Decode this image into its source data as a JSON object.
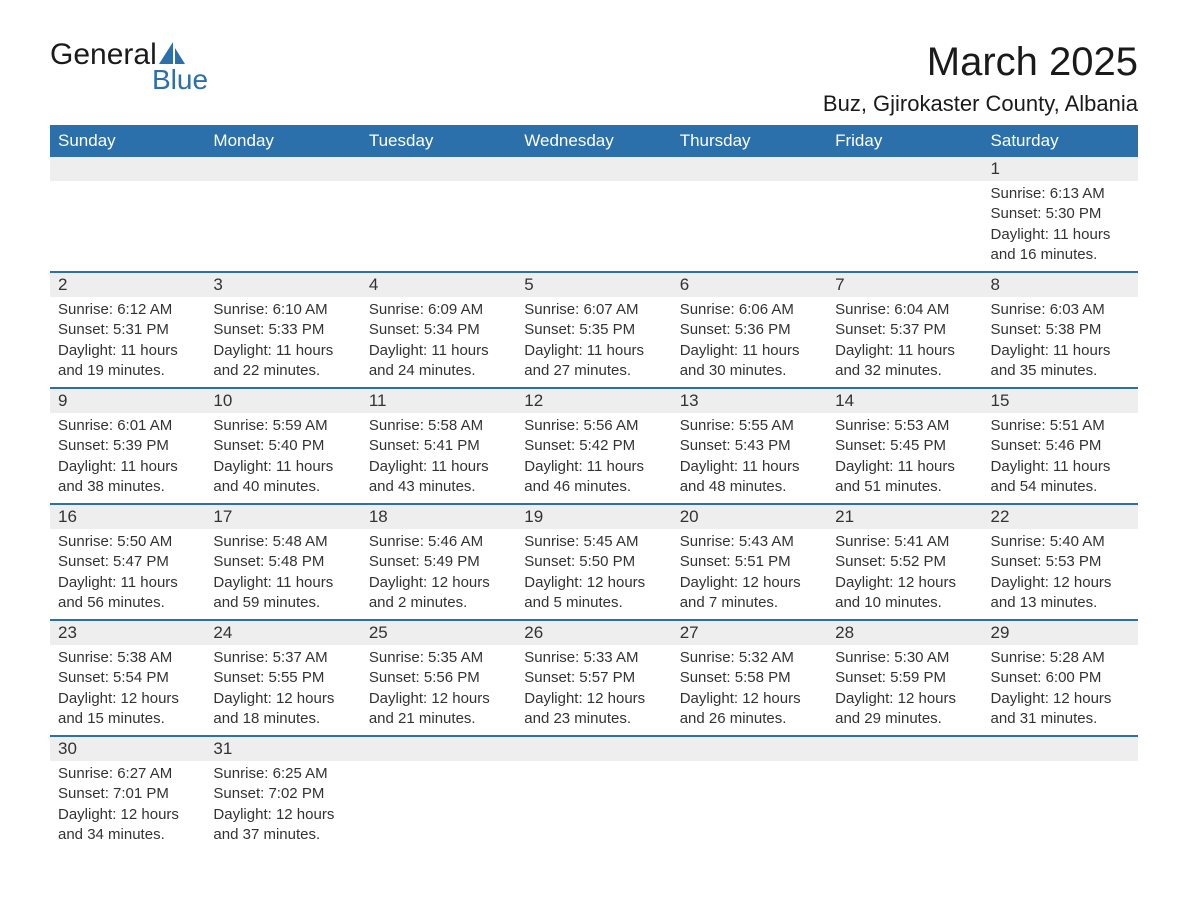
{
  "logo": {
    "text_general": "General",
    "text_blue": "Blue"
  },
  "title": "March 2025",
  "location": "Buz, Gjirokaster County, Albania",
  "day_names": [
    "Sunday",
    "Monday",
    "Tuesday",
    "Wednesday",
    "Thursday",
    "Friday",
    "Saturday"
  ],
  "colors": {
    "header_bg": "#2b6fab",
    "header_text": "#ffffff",
    "date_bar_bg": "#eeeeee",
    "text": "#333333",
    "week_divider": "#2b6fab",
    "logo_blue": "#2b6fab",
    "background": "#ffffff"
  },
  "typography": {
    "title_fontsize": 40,
    "location_fontsize": 22,
    "day_header_fontsize": 17,
    "date_fontsize": 17,
    "body_fontsize": 15,
    "logo_fontsize": 30
  },
  "labels": {
    "sunrise": "Sunrise:",
    "sunset": "Sunset:",
    "daylight": "Daylight:"
  },
  "weeks": [
    [
      null,
      null,
      null,
      null,
      null,
      null,
      {
        "date": "1",
        "sunrise": "6:13 AM",
        "sunset": "5:30 PM",
        "daylight": "11 hours and 16 minutes."
      }
    ],
    [
      {
        "date": "2",
        "sunrise": "6:12 AM",
        "sunset": "5:31 PM",
        "daylight": "11 hours and 19 minutes."
      },
      {
        "date": "3",
        "sunrise": "6:10 AM",
        "sunset": "5:33 PM",
        "daylight": "11 hours and 22 minutes."
      },
      {
        "date": "4",
        "sunrise": "6:09 AM",
        "sunset": "5:34 PM",
        "daylight": "11 hours and 24 minutes."
      },
      {
        "date": "5",
        "sunrise": "6:07 AM",
        "sunset": "5:35 PM",
        "daylight": "11 hours and 27 minutes."
      },
      {
        "date": "6",
        "sunrise": "6:06 AM",
        "sunset": "5:36 PM",
        "daylight": "11 hours and 30 minutes."
      },
      {
        "date": "7",
        "sunrise": "6:04 AM",
        "sunset": "5:37 PM",
        "daylight": "11 hours and 32 minutes."
      },
      {
        "date": "8",
        "sunrise": "6:03 AM",
        "sunset": "5:38 PM",
        "daylight": "11 hours and 35 minutes."
      }
    ],
    [
      {
        "date": "9",
        "sunrise": "6:01 AM",
        "sunset": "5:39 PM",
        "daylight": "11 hours and 38 minutes."
      },
      {
        "date": "10",
        "sunrise": "5:59 AM",
        "sunset": "5:40 PM",
        "daylight": "11 hours and 40 minutes."
      },
      {
        "date": "11",
        "sunrise": "5:58 AM",
        "sunset": "5:41 PM",
        "daylight": "11 hours and 43 minutes."
      },
      {
        "date": "12",
        "sunrise": "5:56 AM",
        "sunset": "5:42 PM",
        "daylight": "11 hours and 46 minutes."
      },
      {
        "date": "13",
        "sunrise": "5:55 AM",
        "sunset": "5:43 PM",
        "daylight": "11 hours and 48 minutes."
      },
      {
        "date": "14",
        "sunrise": "5:53 AM",
        "sunset": "5:45 PM",
        "daylight": "11 hours and 51 minutes."
      },
      {
        "date": "15",
        "sunrise": "5:51 AM",
        "sunset": "5:46 PM",
        "daylight": "11 hours and 54 minutes."
      }
    ],
    [
      {
        "date": "16",
        "sunrise": "5:50 AM",
        "sunset": "5:47 PM",
        "daylight": "11 hours and 56 minutes."
      },
      {
        "date": "17",
        "sunrise": "5:48 AM",
        "sunset": "5:48 PM",
        "daylight": "11 hours and 59 minutes."
      },
      {
        "date": "18",
        "sunrise": "5:46 AM",
        "sunset": "5:49 PM",
        "daylight": "12 hours and 2 minutes."
      },
      {
        "date": "19",
        "sunrise": "5:45 AM",
        "sunset": "5:50 PM",
        "daylight": "12 hours and 5 minutes."
      },
      {
        "date": "20",
        "sunrise": "5:43 AM",
        "sunset": "5:51 PM",
        "daylight": "12 hours and 7 minutes."
      },
      {
        "date": "21",
        "sunrise": "5:41 AM",
        "sunset": "5:52 PM",
        "daylight": "12 hours and 10 minutes."
      },
      {
        "date": "22",
        "sunrise": "5:40 AM",
        "sunset": "5:53 PM",
        "daylight": "12 hours and 13 minutes."
      }
    ],
    [
      {
        "date": "23",
        "sunrise": "5:38 AM",
        "sunset": "5:54 PM",
        "daylight": "12 hours and 15 minutes."
      },
      {
        "date": "24",
        "sunrise": "5:37 AM",
        "sunset": "5:55 PM",
        "daylight": "12 hours and 18 minutes."
      },
      {
        "date": "25",
        "sunrise": "5:35 AM",
        "sunset": "5:56 PM",
        "daylight": "12 hours and 21 minutes."
      },
      {
        "date": "26",
        "sunrise": "5:33 AM",
        "sunset": "5:57 PM",
        "daylight": "12 hours and 23 minutes."
      },
      {
        "date": "27",
        "sunrise": "5:32 AM",
        "sunset": "5:58 PM",
        "daylight": "12 hours and 26 minutes."
      },
      {
        "date": "28",
        "sunrise": "5:30 AM",
        "sunset": "5:59 PM",
        "daylight": "12 hours and 29 minutes."
      },
      {
        "date": "29",
        "sunrise": "5:28 AM",
        "sunset": "6:00 PM",
        "daylight": "12 hours and 31 minutes."
      }
    ],
    [
      {
        "date": "30",
        "sunrise": "6:27 AM",
        "sunset": "7:01 PM",
        "daylight": "12 hours and 34 minutes."
      },
      {
        "date": "31",
        "sunrise": "6:25 AM",
        "sunset": "7:02 PM",
        "daylight": "12 hours and 37 minutes."
      },
      null,
      null,
      null,
      null,
      null
    ]
  ]
}
